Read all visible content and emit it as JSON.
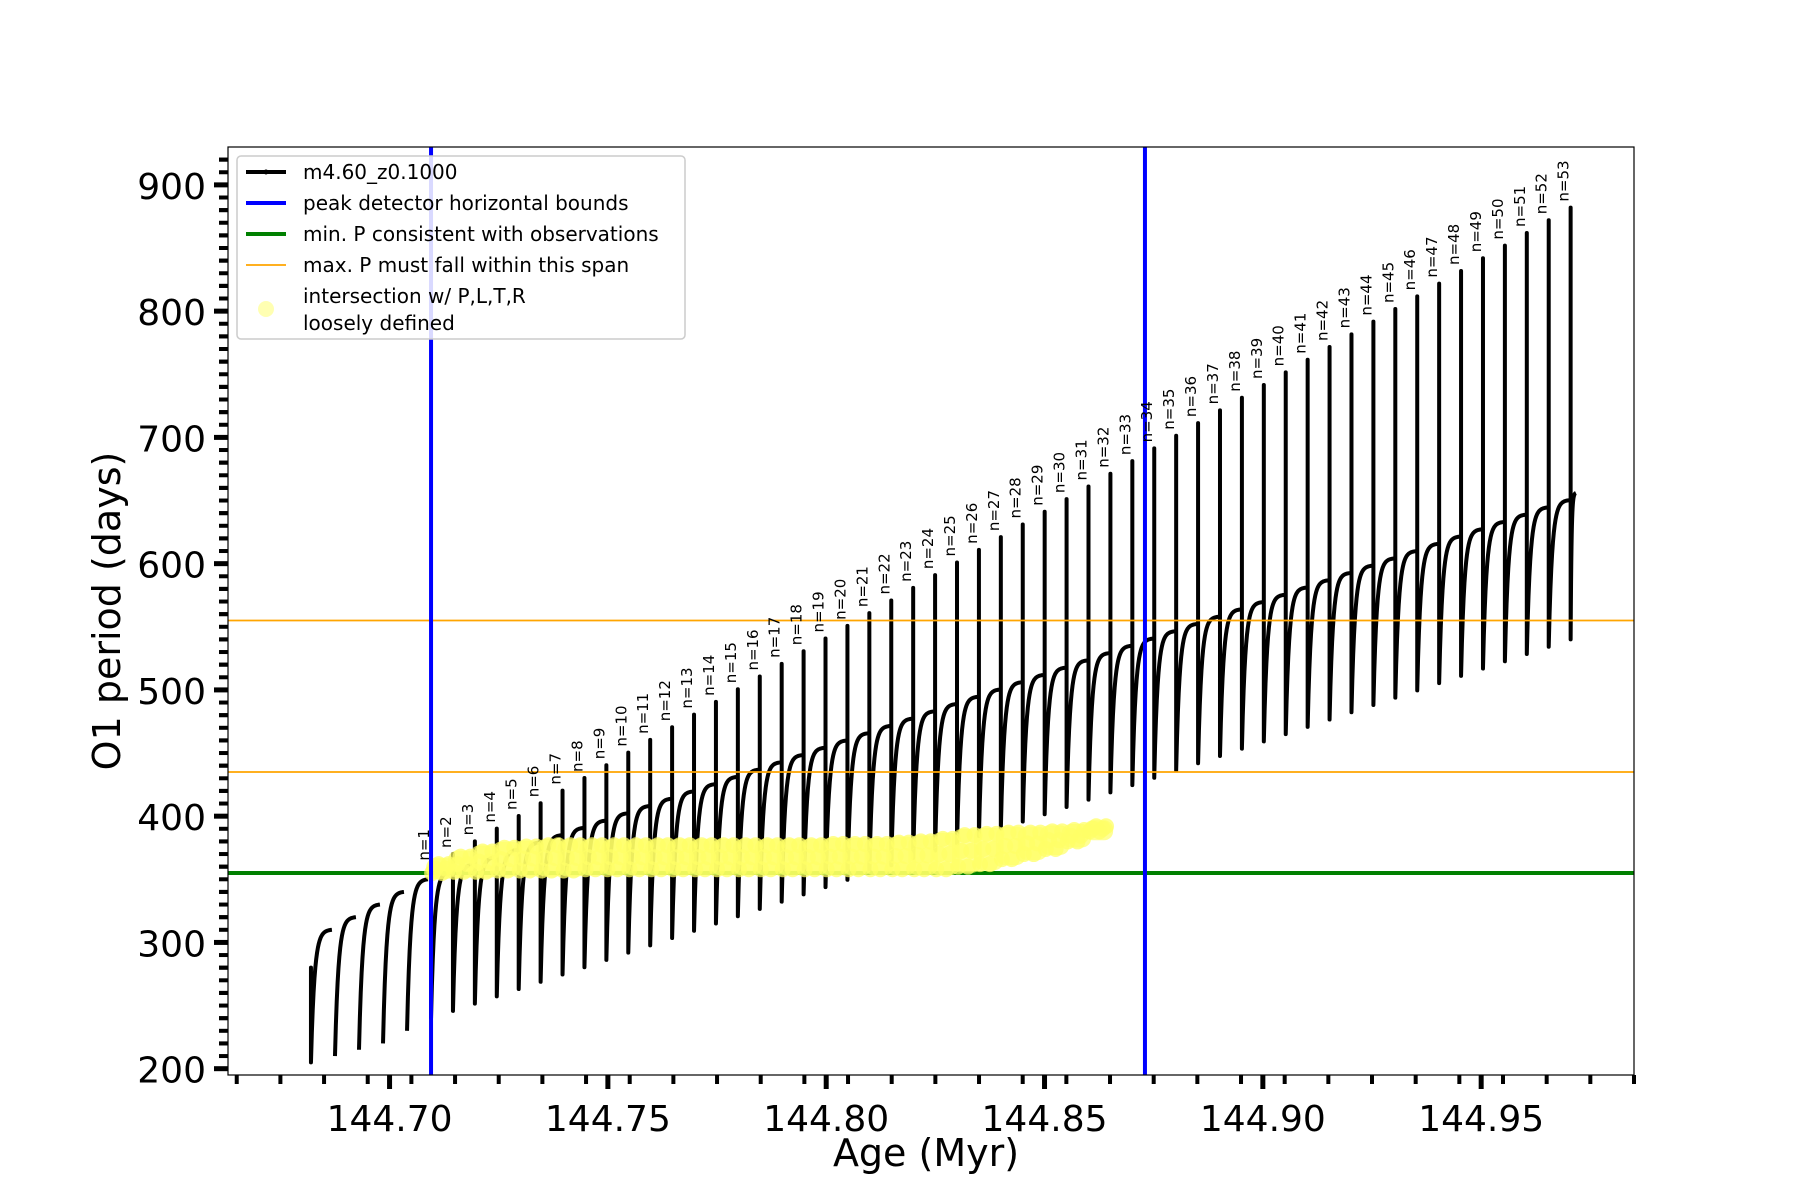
{
  "chart_data": {
    "type": "line",
    "title": "",
    "xlabel": "Age (Myr)",
    "ylabel": "O1 period (days)",
    "xlim": [
      144.663,
      144.985
    ],
    "ylim": [
      195,
      930
    ],
    "x_ticks": [
      144.7,
      144.75,
      144.8,
      144.85,
      144.9,
      144.95
    ],
    "x_tick_labels": [
      "144.70",
      "144.75",
      "144.80",
      "144.85",
      "144.90",
      "144.95"
    ],
    "y_ticks": [
      200,
      300,
      400,
      500,
      600,
      700,
      800,
      900
    ],
    "y_tick_labels": [
      "200",
      "300",
      "400",
      "500",
      "600",
      "700",
      "800",
      "900"
    ],
    "grid": false,
    "legend_position": "top-left",
    "legend": [
      {
        "label": "m4.60_z0.1000",
        "kind": "line-marker",
        "color": "#000000"
      },
      {
        "label": "peak detector horizontal bounds",
        "kind": "line",
        "color": "#0000ff"
      },
      {
        "label": "min. P consistent with observations",
        "kind": "line",
        "color": "#008000"
      },
      {
        "label": "max. P must fall within this span",
        "kind": "line",
        "color": "#ffa500"
      },
      {
        "label": "intersection w/ P,L,T,R",
        "label2": "loosely defined",
        "kind": "marker",
        "color": "#ffff66"
      }
    ],
    "vertical_lines": {
      "color": "#0000ff",
      "x": [
        144.7095,
        144.873
      ]
    },
    "min_period_line": {
      "color": "#008000",
      "y": 355
    },
    "max_period_span": {
      "color": "#ffa500",
      "y": [
        435,
        555
      ]
    },
    "track": {
      "name": "m4.60_z0.1000",
      "color": "#000000",
      "pre_pulses": [
        {
          "x": 144.682,
          "base": 205,
          "peak": 280,
          "top": 310
        },
        {
          "x": 144.6875,
          "base": 210,
          "top": 320
        },
        {
          "x": 144.693,
          "base": 215,
          "top": 330
        },
        {
          "x": 144.6985,
          "base": 220,
          "top": 340
        },
        {
          "x": 144.704,
          "base": 230,
          "top": 350
        }
      ],
      "pulse_n": [
        1,
        2,
        3,
        4,
        5,
        6,
        7,
        8,
        9,
        10,
        11,
        12,
        13,
        14,
        15,
        16,
        17,
        18,
        19,
        20,
        21,
        22,
        23,
        24,
        25,
        26,
        27,
        28,
        29,
        30,
        31,
        32,
        33,
        34,
        35,
        36,
        37,
        38,
        39,
        40,
        41,
        42,
        43,
        44,
        45,
        46,
        47,
        48,
        49,
        50,
        51,
        52,
        53
      ],
      "pulse_labels": [
        "n=1",
        "n=2",
        "n=3",
        "n=4",
        "n=5",
        "n=6",
        "n=7",
        "n=8",
        "n=9",
        "n=10",
        "n=11",
        "n=12",
        "n=13",
        "n=14",
        "n=15",
        "n=16",
        "n=17",
        "n=18",
        "n=19",
        "n=20",
        "n=21",
        "n=22",
        "n=23",
        "n=24",
        "n=25",
        "n=26",
        "n=27",
        "n=28",
        "n=29",
        "n=30",
        "n=31",
        "n=32",
        "n=33",
        "n=34",
        "n=35",
        "n=36",
        "n=37",
        "n=38",
        "n=39",
        "n=40",
        "n=41",
        "n=42",
        "n=43",
        "n=44",
        "n=45",
        "n=46",
        "n=47",
        "n=48",
        "n=49",
        "n=50",
        "n=51",
        "n=52",
        "n=53"
      ],
      "pulse_x_start": 144.7095,
      "pulse_x_step": 0.005019,
      "pulse_base": {
        "start": 240,
        "end": 540
      },
      "pulse_peak": {
        "start": 360,
        "end": 882
      },
      "pulse_top": {
        "start": 356,
        "end": 656
      }
    },
    "intersection_points": {
      "color": "#ffff66",
      "n": [
        1,
        2,
        3,
        4,
        5,
        6,
        7,
        8,
        9,
        10,
        11,
        12,
        13,
        14,
        15,
        16,
        17,
        18,
        19,
        20,
        21,
        22,
        23,
        24,
        25,
        26,
        27,
        28,
        29,
        30,
        31
      ],
      "low": [
        355,
        356,
        356,
        357,
        357,
        357,
        357,
        358,
        358,
        358,
        358,
        358,
        358,
        358,
        358,
        358,
        358,
        358,
        358,
        358,
        358,
        358,
        358,
        358,
        360,
        362,
        366,
        370,
        374,
        380,
        388
      ],
      "high": [
        362,
        368,
        372,
        375,
        376,
        377,
        377,
        377,
        377,
        377,
        377,
        377,
        377,
        377,
        377,
        377,
        377,
        377,
        378,
        378,
        378,
        379,
        380,
        382,
        385,
        386,
        387,
        387,
        388,
        389,
        392
      ]
    }
  }
}
